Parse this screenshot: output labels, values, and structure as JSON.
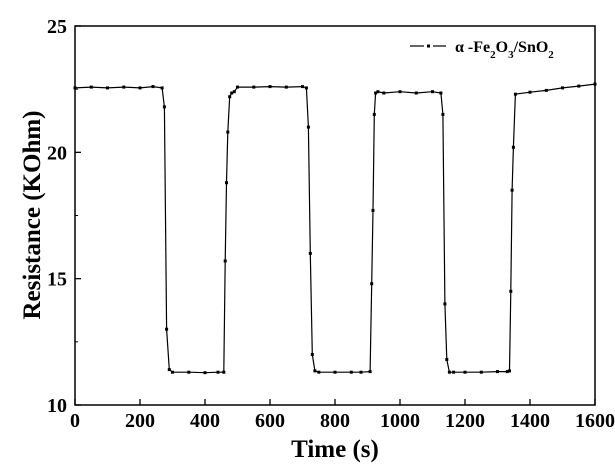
{
  "chart_data": {
    "type": "line",
    "title": "",
    "xlabel": "Time (s)",
    "ylabel": "Resistance (KOhm)",
    "xlim": [
      0,
      1600
    ],
    "ylim": [
      10,
      25
    ],
    "xticks": [
      0,
      200,
      400,
      600,
      800,
      1000,
      1200,
      1400,
      1600
    ],
    "yticks": [
      10,
      15,
      20,
      25
    ],
    "grid": false,
    "legend_position": "top-right",
    "colors": {
      "line": "#000000",
      "marker": "#000000"
    },
    "series": [
      {
        "name": "α -Fe2O3/SnO2",
        "x": [
          0,
          50,
          100,
          150,
          200,
          240,
          268,
          275,
          282,
          290,
          300,
          350,
          400,
          440,
          458,
          462,
          466,
          470,
          476,
          482,
          490,
          500,
          550,
          600,
          650,
          700,
          712,
          718,
          724,
          730,
          738,
          750,
          800,
          850,
          880,
          908,
          913,
          917,
          921,
          925,
          932,
          950,
          1000,
          1050,
          1100,
          1126,
          1132,
          1138,
          1144,
          1152,
          1165,
          1200,
          1250,
          1300,
          1330,
          1337,
          1341,
          1345,
          1349,
          1355,
          1400,
          1450,
          1500,
          1550,
          1600
        ],
        "y": [
          22.55,
          22.58,
          22.55,
          22.58,
          22.55,
          22.6,
          22.55,
          21.8,
          13.0,
          11.4,
          11.3,
          11.3,
          11.28,
          11.3,
          11.3,
          15.7,
          18.8,
          20.8,
          22.2,
          22.35,
          22.4,
          22.58,
          22.58,
          22.6,
          22.58,
          22.6,
          22.55,
          21.0,
          16.0,
          12.0,
          11.35,
          11.3,
          11.3,
          11.3,
          11.3,
          11.32,
          14.8,
          17.7,
          21.5,
          22.35,
          22.4,
          22.35,
          22.4,
          22.35,
          22.4,
          22.35,
          21.5,
          14.0,
          11.8,
          11.3,
          11.3,
          11.3,
          11.3,
          11.32,
          11.32,
          11.35,
          14.5,
          18.5,
          20.2,
          22.3,
          22.38,
          22.45,
          22.55,
          22.62,
          22.7
        ]
      }
    ]
  }
}
